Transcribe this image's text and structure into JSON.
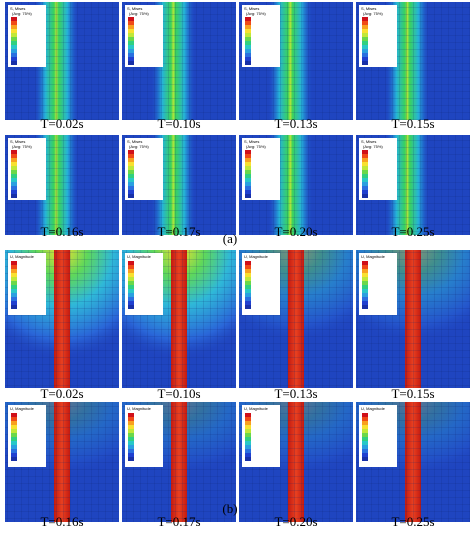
{
  "part_a": {
    "label": "(a)",
    "legend_title": "S, Mises",
    "legend_subtitle": "(Avg: 75%)",
    "panels": [
      {
        "time": "T=0.02s"
      },
      {
        "time": "T=0.10s"
      },
      {
        "time": "T=0.13s"
      },
      {
        "time": "T=0.15s"
      },
      {
        "time": "T=0.16s"
      },
      {
        "time": "T=0.17s"
      },
      {
        "time": "T=0.20s"
      },
      {
        "time": "T=0.25s"
      }
    ]
  },
  "part_b": {
    "label": "(b)",
    "legend_title": "U, Magnitude",
    "panels": [
      {
        "time": "T=0.02s"
      },
      {
        "time": "T=0.10s"
      },
      {
        "time": "T=0.13s"
      },
      {
        "time": "T=0.15s"
      },
      {
        "time": "T=0.16s"
      },
      {
        "time": "T=0.17s"
      },
      {
        "time": "T=0.20s"
      },
      {
        "time": "T=0.25s"
      }
    ]
  }
}
